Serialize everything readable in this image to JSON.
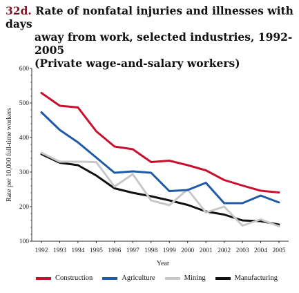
{
  "figure": {
    "number": "32d.",
    "title_line1": "Rate of nonfatal injuries and illnesses with days",
    "title_line2": "away from work, selected industries, 1992-2005",
    "title_line3": "(Private wage-and-salary workers)"
  },
  "chart_data": {
    "type": "line",
    "x": [
      1992,
      1993,
      1994,
      1995,
      1996,
      1997,
      1998,
      1999,
      2000,
      2001,
      2002,
      2003,
      2004,
      2005
    ],
    "x_tick_labels": [
      "1992",
      "1993",
      "1994",
      "1995",
      "1996",
      "1997",
      "1998",
      "1999",
      "2000",
      "2001",
      "2002",
      "2003",
      "2004",
      "2005"
    ],
    "xlabel": "Year",
    "ylabel": "Rate per 10,000 full-time workers",
    "ylim": [
      100,
      600
    ],
    "y_ticks": [
      100,
      200,
      300,
      400,
      500,
      600
    ],
    "y_tick_labels": [
      "100",
      "200",
      "300",
      "400",
      "500",
      "600"
    ],
    "grid": false,
    "legend_position": "bottom",
    "series": [
      {
        "name": "Construction",
        "color": "#c8102e",
        "values": [
          529,
          492,
          487,
          418,
          374,
          366,
          329,
          333,
          320,
          305,
          277,
          261,
          246,
          241
        ]
      },
      {
        "name": "Agriculture",
        "color": "#1f5aa8",
        "values": [
          473,
          422,
          386,
          342,
          298,
          302,
          298,
          245,
          248,
          269,
          210,
          210,
          232,
          212
        ]
      },
      {
        "name": "Mining",
        "color": "#c8c8c8",
        "values": [
          356,
          330,
          330,
          329,
          258,
          294,
          218,
          204,
          250,
          183,
          200,
          145,
          163,
          143
        ]
      },
      {
        "name": "Manufacturing",
        "color": "#111111",
        "values": [
          352,
          327,
          320,
          290,
          253,
          240,
          230,
          218,
          205,
          186,
          177,
          160,
          158,
          148
        ]
      }
    ]
  }
}
